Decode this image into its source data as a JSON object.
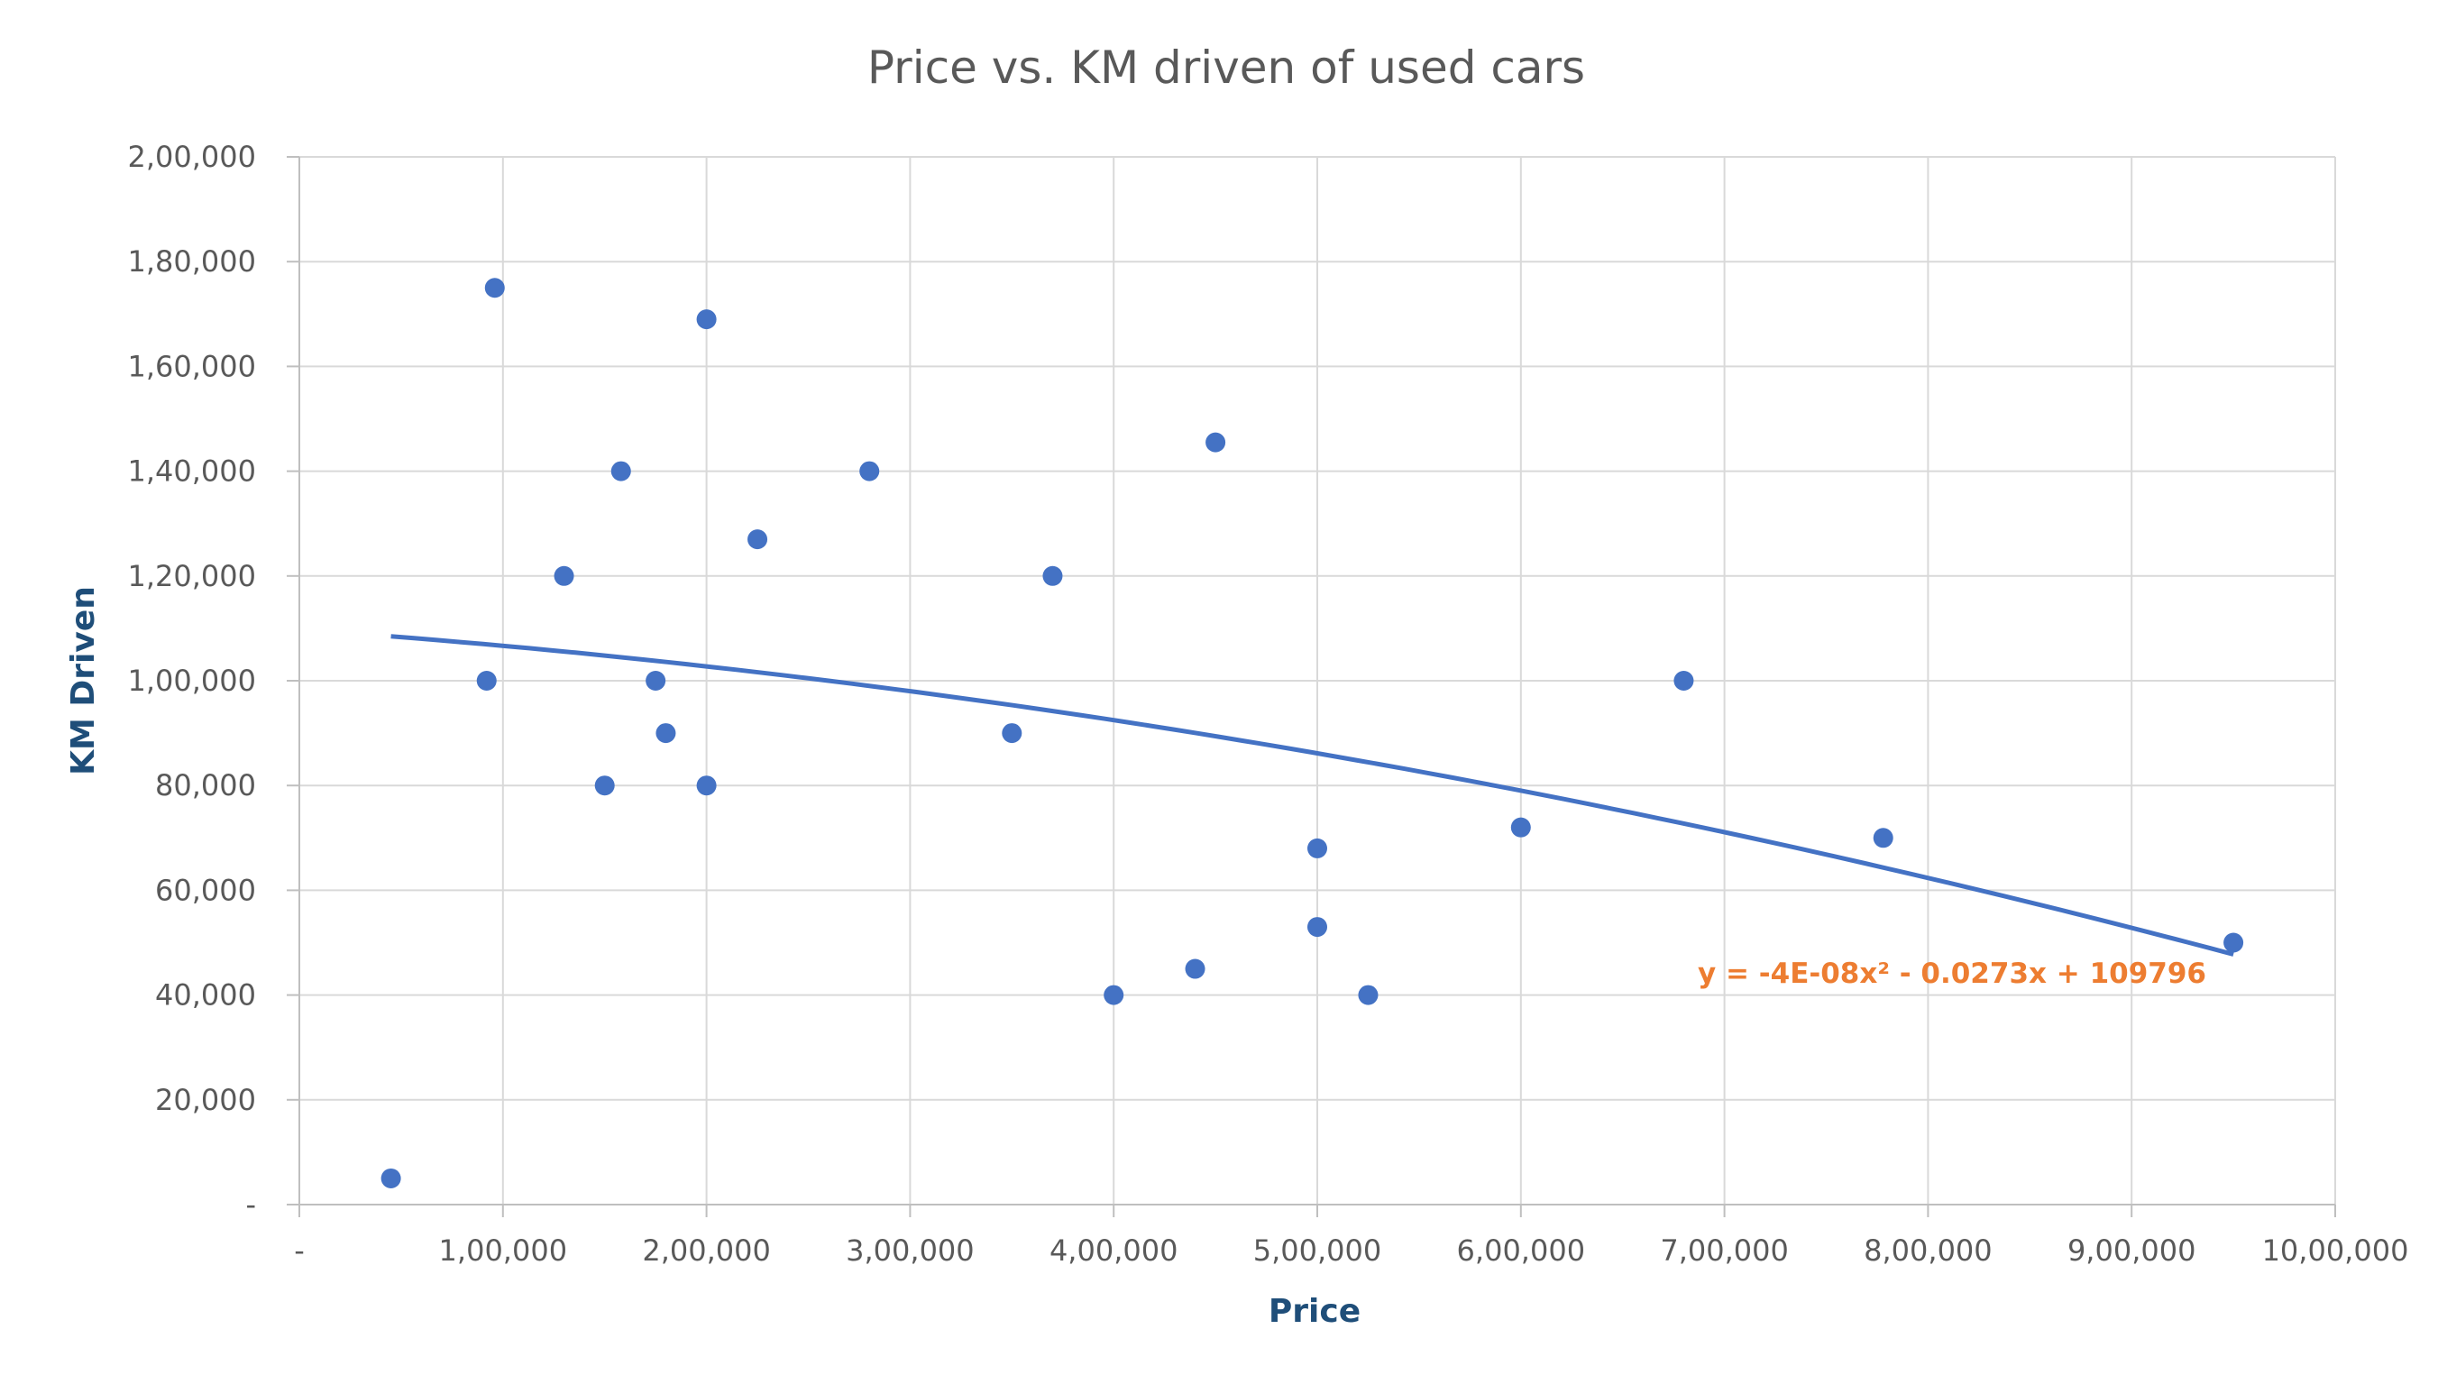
{
  "chart_data": {
    "type": "scatter",
    "title": "Price vs. KM driven of used cars",
    "xlabel": "Price",
    "ylabel": "KM Driven",
    "xlim": [
      0,
      1000000
    ],
    "ylim": [
      0,
      200000
    ],
    "x_ticks": [
      {
        "value": 0,
        "label": "-"
      },
      {
        "value": 100000,
        "label": "1,00,000"
      },
      {
        "value": 200000,
        "label": "2,00,000"
      },
      {
        "value": 300000,
        "label": "3,00,000"
      },
      {
        "value": 400000,
        "label": "4,00,000"
      },
      {
        "value": 500000,
        "label": "5,00,000"
      },
      {
        "value": 600000,
        "label": "6,00,000"
      },
      {
        "value": 700000,
        "label": "7,00,000"
      },
      {
        "value": 800000,
        "label": "8,00,000"
      },
      {
        "value": 900000,
        "label": "9,00,000"
      },
      {
        "value": 1000000,
        "label": "10,00,000"
      }
    ],
    "y_ticks": [
      {
        "value": 0,
        "label": "-"
      },
      {
        "value": 20000,
        "label": "20,000"
      },
      {
        "value": 40000,
        "label": "40,000"
      },
      {
        "value": 60000,
        "label": "60,000"
      },
      {
        "value": 80000,
        "label": "80,000"
      },
      {
        "value": 100000,
        "label": "1,00,000"
      },
      {
        "value": 120000,
        "label": "1,20,000"
      },
      {
        "value": 140000,
        "label": "1,40,000"
      },
      {
        "value": 160000,
        "label": "1,60,000"
      },
      {
        "value": 180000,
        "label": "1,80,000"
      },
      {
        "value": 200000,
        "label": "2,00,000"
      }
    ],
    "grid": true,
    "points": [
      {
        "x": 45000,
        "y": 5000
      },
      {
        "x": 92000,
        "y": 100000
      },
      {
        "x": 96000,
        "y": 175000
      },
      {
        "x": 130000,
        "y": 120000
      },
      {
        "x": 150000,
        "y": 80000
      },
      {
        "x": 158000,
        "y": 140000
      },
      {
        "x": 175000,
        "y": 100000
      },
      {
        "x": 180000,
        "y": 90000
      },
      {
        "x": 200000,
        "y": 80000
      },
      {
        "x": 200000,
        "y": 169000
      },
      {
        "x": 225000,
        "y": 127000
      },
      {
        "x": 280000,
        "y": 140000
      },
      {
        "x": 350000,
        "y": 90000
      },
      {
        "x": 370000,
        "y": 120000
      },
      {
        "x": 400000,
        "y": 40000
      },
      {
        "x": 440000,
        "y": 45000
      },
      {
        "x": 450000,
        "y": 145500
      },
      {
        "x": 500000,
        "y": 68000
      },
      {
        "x": 500000,
        "y": 53000
      },
      {
        "x": 525000,
        "y": 40000
      },
      {
        "x": 600000,
        "y": 72000
      },
      {
        "x": 680000,
        "y": 100000
      },
      {
        "x": 778000,
        "y": 70000
      },
      {
        "x": 950000,
        "y": 50000
      }
    ],
    "trendline": {
      "type": "polynomial",
      "coefficients": [
        -4e-08,
        -0.0273,
        109796
      ],
      "x_range": [
        45000,
        950000
      ],
      "equation": "y = -4E-08x² - 0.0273x + 109796"
    },
    "colors": {
      "marker": "#4472C4",
      "trendline": "#4472C4",
      "equation": "#ED7D31",
      "axis_title": "#1F4E79"
    }
  }
}
